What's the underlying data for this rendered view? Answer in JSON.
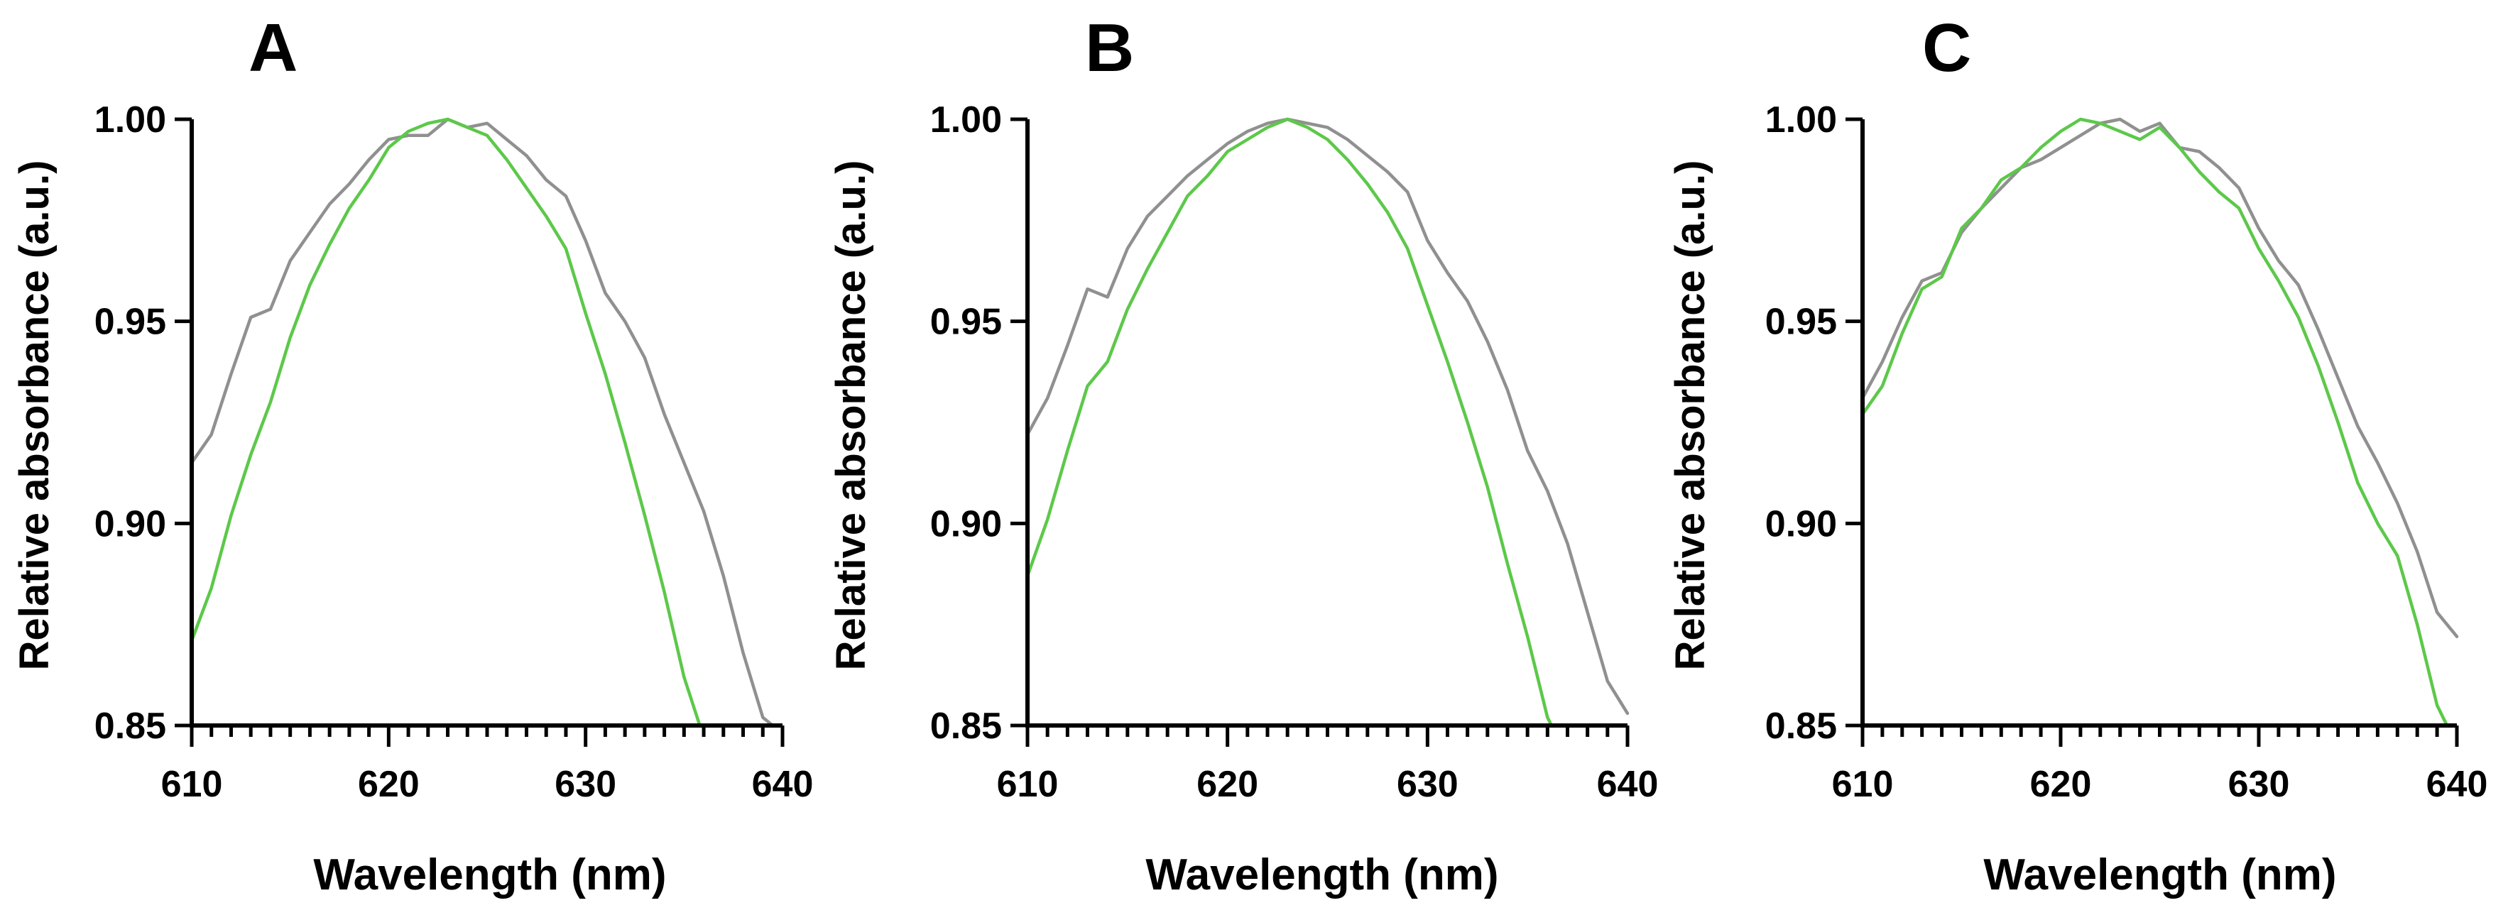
{
  "chart_data": [
    {
      "type": "line",
      "panel": "A",
      "xlabel": "Wavelength (nm)",
      "ylabel": "Relative absorbance (a.u.)",
      "xlim": [
        610,
        640
      ],
      "ylim": [
        0.85,
        1.0
      ],
      "xticks": [
        610,
        620,
        630,
        640
      ],
      "yticks": [
        0.85,
        0.9,
        0.95,
        1.0
      ],
      "ytick_labels": [
        "0.85",
        "0.90",
        "0.95",
        "1.00"
      ],
      "series": [
        {
          "name": "gray",
          "color": "#909090",
          "x": [
            610,
            611,
            612,
            613,
            614,
            615,
            616,
            617,
            618,
            619,
            620,
            621,
            622,
            623,
            624,
            625,
            626,
            627,
            628,
            629,
            630,
            631,
            632,
            633,
            634,
            635,
            636,
            637,
            638,
            639,
            639.5
          ],
          "y": [
            0.915,
            0.922,
            0.937,
            0.951,
            0.953,
            0.965,
            0.972,
            0.979,
            0.984,
            0.99,
            0.995,
            0.996,
            0.996,
            1.0,
            0.998,
            0.999,
            0.995,
            0.991,
            0.985,
            0.981,
            0.97,
            0.957,
            0.95,
            0.941,
            0.927,
            0.915,
            0.903,
            0.887,
            0.868,
            0.852,
            0.85
          ]
        },
        {
          "name": "green",
          "color": "#5dc84a",
          "x": [
            610,
            611,
            612,
            613,
            614,
            615,
            616,
            617,
            618,
            619,
            620,
            621,
            622,
            623,
            624,
            625,
            626,
            627,
            628,
            629,
            630,
            631,
            632,
            633,
            634,
            635,
            635.8
          ],
          "y": [
            0.871,
            0.884,
            0.902,
            0.917,
            0.93,
            0.946,
            0.959,
            0.969,
            0.978,
            0.985,
            0.993,
            0.997,
            0.999,
            1.0,
            0.998,
            0.996,
            0.99,
            0.983,
            0.976,
            0.968,
            0.952,
            0.937,
            0.92,
            0.902,
            0.883,
            0.862,
            0.85
          ]
        }
      ]
    },
    {
      "type": "line",
      "panel": "B",
      "xlabel": "Wavelength (nm)",
      "ylabel": "Relative absorbance (a.u.)",
      "xlim": [
        610,
        640
      ],
      "ylim": [
        0.85,
        1.0
      ],
      "xticks": [
        610,
        620,
        630,
        640
      ],
      "yticks": [
        0.85,
        0.9,
        0.95,
        1.0
      ],
      "ytick_labels": [
        "0.85",
        "0.90",
        "0.95",
        "1.00"
      ],
      "series": [
        {
          "name": "gray",
          "color": "#909090",
          "x": [
            610,
            611,
            612,
            613,
            614,
            615,
            616,
            617,
            618,
            619,
            620,
            621,
            622,
            623,
            624,
            625,
            626,
            627,
            628,
            629,
            630,
            631,
            632,
            633,
            634,
            635,
            636,
            637,
            638,
            639,
            640
          ],
          "y": [
            0.922,
            0.931,
            0.944,
            0.958,
            0.956,
            0.968,
            0.976,
            0.981,
            0.986,
            0.99,
            0.994,
            0.997,
            0.999,
            1.0,
            0.999,
            0.998,
            0.995,
            0.991,
            0.987,
            0.982,
            0.97,
            0.962,
            0.955,
            0.945,
            0.933,
            0.918,
            0.908,
            0.895,
            0.878,
            0.861,
            0.853
          ]
        },
        {
          "name": "green",
          "color": "#5dc84a",
          "x": [
            610,
            611,
            612,
            613,
            614,
            615,
            616,
            617,
            618,
            619,
            620,
            621,
            622,
            623,
            624,
            625,
            626,
            627,
            628,
            629,
            630,
            631,
            632,
            633,
            634,
            635,
            636,
            636.2
          ],
          "y": [
            0.887,
            0.901,
            0.918,
            0.934,
            0.94,
            0.953,
            0.963,
            0.972,
            0.981,
            0.986,
            0.992,
            0.995,
            0.998,
            1.0,
            0.998,
            0.995,
            0.99,
            0.984,
            0.977,
            0.968,
            0.954,
            0.94,
            0.925,
            0.909,
            0.89,
            0.872,
            0.852,
            0.85
          ]
        }
      ]
    },
    {
      "type": "line",
      "panel": "C",
      "xlabel": "Wavelength (nm)",
      "ylabel": "Relative absorbance (a.u.)",
      "xlim": [
        610,
        640
      ],
      "ylim": [
        0.85,
        1.0
      ],
      "xticks": [
        610,
        620,
        630,
        640
      ],
      "yticks": [
        0.85,
        0.9,
        0.95,
        1.0
      ],
      "ytick_labels": [
        "0.85",
        "0.90",
        "0.95",
        "1.00"
      ],
      "series": [
        {
          "name": "gray",
          "color": "#909090",
          "x": [
            610,
            611,
            612,
            613,
            614,
            615,
            616,
            617,
            618,
            619,
            620,
            621,
            622,
            623,
            624,
            625,
            626,
            627,
            628,
            629,
            630,
            631,
            632,
            633,
            634,
            635,
            636,
            637,
            638,
            639,
            640
          ],
          "y": [
            0.931,
            0.94,
            0.951,
            0.96,
            0.962,
            0.972,
            0.978,
            0.983,
            0.988,
            0.99,
            0.993,
            0.996,
            0.999,
            1.0,
            0.997,
            0.999,
            0.993,
            0.992,
            0.988,
            0.983,
            0.973,
            0.965,
            0.959,
            0.948,
            0.936,
            0.924,
            0.915,
            0.905,
            0.893,
            0.878,
            0.872
          ]
        },
        {
          "name": "green",
          "color": "#5dc84a",
          "x": [
            610,
            611,
            612,
            613,
            614,
            615,
            616,
            617,
            618,
            619,
            620,
            621,
            622,
            623,
            624,
            625,
            626,
            627,
            628,
            629,
            630,
            631,
            632,
            633,
            634,
            635,
            636,
            637,
            638,
            639,
            639.5
          ],
          "y": [
            0.927,
            0.934,
            0.947,
            0.958,
            0.961,
            0.973,
            0.978,
            0.985,
            0.988,
            0.993,
            0.997,
            1.0,
            0.999,
            0.997,
            0.995,
            0.998,
            0.993,
            0.987,
            0.982,
            0.978,
            0.968,
            0.96,
            0.951,
            0.939,
            0.925,
            0.91,
            0.9,
            0.892,
            0.875,
            0.855,
            0.85
          ]
        }
      ]
    }
  ]
}
